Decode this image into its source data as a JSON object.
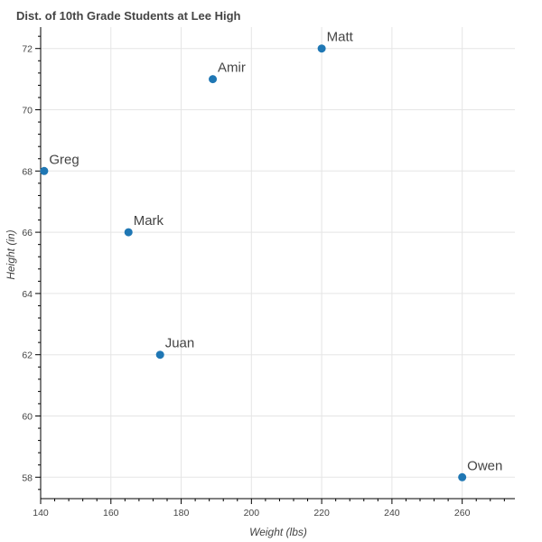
{
  "chart_data": {
    "type": "scatter",
    "title": "Dist. of 10th Grade Students at Lee High",
    "xlabel": "Weight (lbs)",
    "ylabel": "Height (in)",
    "xlim": [
      140,
      275
    ],
    "ylim": [
      57.3,
      72.7
    ],
    "xticks": [
      140,
      160,
      180,
      200,
      220,
      240,
      260
    ],
    "yticks": [
      58,
      60,
      62,
      64,
      66,
      68,
      70,
      72
    ],
    "x_minor_step": 4,
    "y_minor_step": 0.4,
    "grid": true,
    "point_color": "#1f77b4",
    "points": [
      {
        "label": "Greg",
        "x": 141,
        "y": 68
      },
      {
        "label": "Mark",
        "x": 165,
        "y": 66
      },
      {
        "label": "Juan",
        "x": 174,
        "y": 62
      },
      {
        "label": "Amir",
        "x": 189,
        "y": 71
      },
      {
        "label": "Matt",
        "x": 220,
        "y": 72
      },
      {
        "label": "Owen",
        "x": 260,
        "y": 58
      }
    ]
  }
}
